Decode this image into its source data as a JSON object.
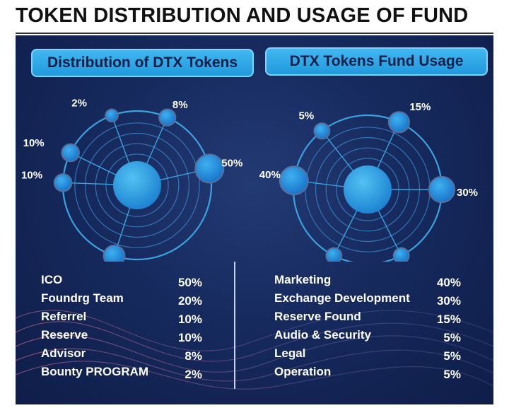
{
  "page": {
    "title": "TOKEN DISTRIBUTION AND USAGE OF FUND"
  },
  "colors": {
    "panel": "#162a5e",
    "accent": "#2aa6e8",
    "ring": "#3aa3e0",
    "node": "#1f8fe0"
  },
  "chart_data": [
    {
      "type": "pie",
      "title": "Distribution of DTX Tokens",
      "labels": [
        "ICO",
        "Foundrg Team",
        "Referrel",
        "Reserve",
        "Advisor",
        "Bounty PROGRAM"
      ],
      "values": [
        50,
        20,
        10,
        10,
        8,
        2
      ],
      "value_labels": [
        "50%",
        "20%",
        "10%",
        "10%",
        "8%",
        "2%"
      ]
    },
    {
      "type": "pie",
      "title": "DTX Tokens Fund Usage",
      "labels": [
        "Marketing",
        "Exchange Development",
        "Reserve Found",
        "Audio & Security",
        "Legal",
        "Operation"
      ],
      "values": [
        40,
        30,
        15,
        5,
        5,
        5
      ],
      "value_labels": [
        "40%",
        "30%",
        "15%",
        "5%",
        "5%",
        "5%"
      ]
    }
  ]
}
